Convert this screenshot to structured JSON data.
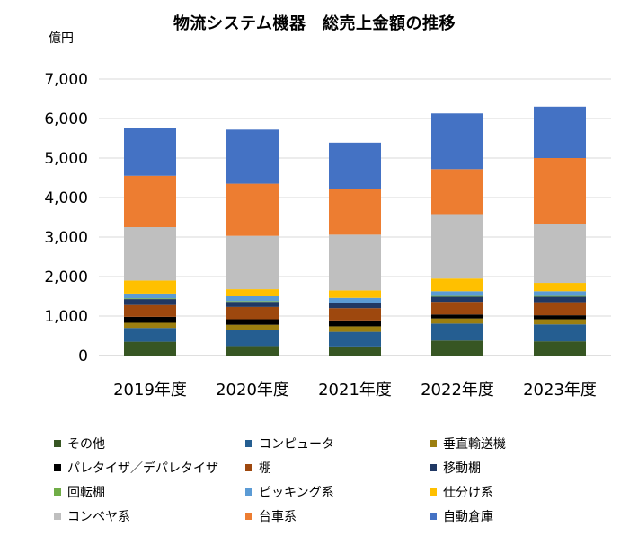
{
  "chart_data": {
    "type": "bar",
    "stacked": true,
    "title": "物流システム機器　総売上金額の推移",
    "unit_label": "億円",
    "categories": [
      "2019年度",
      "2020年度",
      "2021年度",
      "2022年度",
      "2023年度"
    ],
    "ylim": [
      0,
      7000
    ],
    "yticks": [
      "0",
      "1,000",
      "2,000",
      "3,000",
      "4,000",
      "5,000",
      "6,000",
      "7,000"
    ],
    "ytick_values": [
      0,
      1000,
      2000,
      3000,
      4000,
      5000,
      6000,
      7000
    ],
    "grid": true,
    "legend_position": "bottom",
    "series": [
      {
        "name": "その他",
        "color": "#375623",
        "values": [
          350,
          240,
          230,
          380,
          360
        ]
      },
      {
        "name": "コンピュータ",
        "color": "#255E91",
        "values": [
          350,
          400,
          370,
          430,
          430
        ]
      },
      {
        "name": "垂直輸送機",
        "color": "#9C7F10",
        "values": [
          130,
          140,
          140,
          130,
          130
        ]
      },
      {
        "name": "パレタイザ／デパレタイザ",
        "color": "#000000",
        "values": [
          150,
          140,
          150,
          100,
          100
        ]
      },
      {
        "name": "棚",
        "color": "#9E480E",
        "values": [
          300,
          310,
          310,
          320,
          330
        ]
      },
      {
        "name": "移動棚",
        "color": "#203864",
        "values": [
          150,
          130,
          120,
          130,
          140
        ]
      },
      {
        "name": "回転棚",
        "color": "#70AD47",
        "values": [
          20,
          20,
          20,
          20,
          20
        ]
      },
      {
        "name": "ピッキング系",
        "color": "#5B9BD5",
        "values": [
          120,
          120,
          120,
          120,
          120
        ]
      },
      {
        "name": "仕分け系",
        "color": "#FFC000",
        "values": [
          330,
          180,
          190,
          320,
          210
        ]
      },
      {
        "name": "コンベヤ系",
        "color": "#BFBFBF",
        "values": [
          1350,
          1350,
          1410,
          1630,
          1490
        ]
      },
      {
        "name": "台車系",
        "color": "#ED7D31",
        "values": [
          1300,
          1320,
          1160,
          1140,
          1670
        ]
      },
      {
        "name": "自動倉庫",
        "color": "#4472C4",
        "values": [
          1200,
          1370,
          1170,
          1410,
          1300
        ]
      }
    ]
  }
}
